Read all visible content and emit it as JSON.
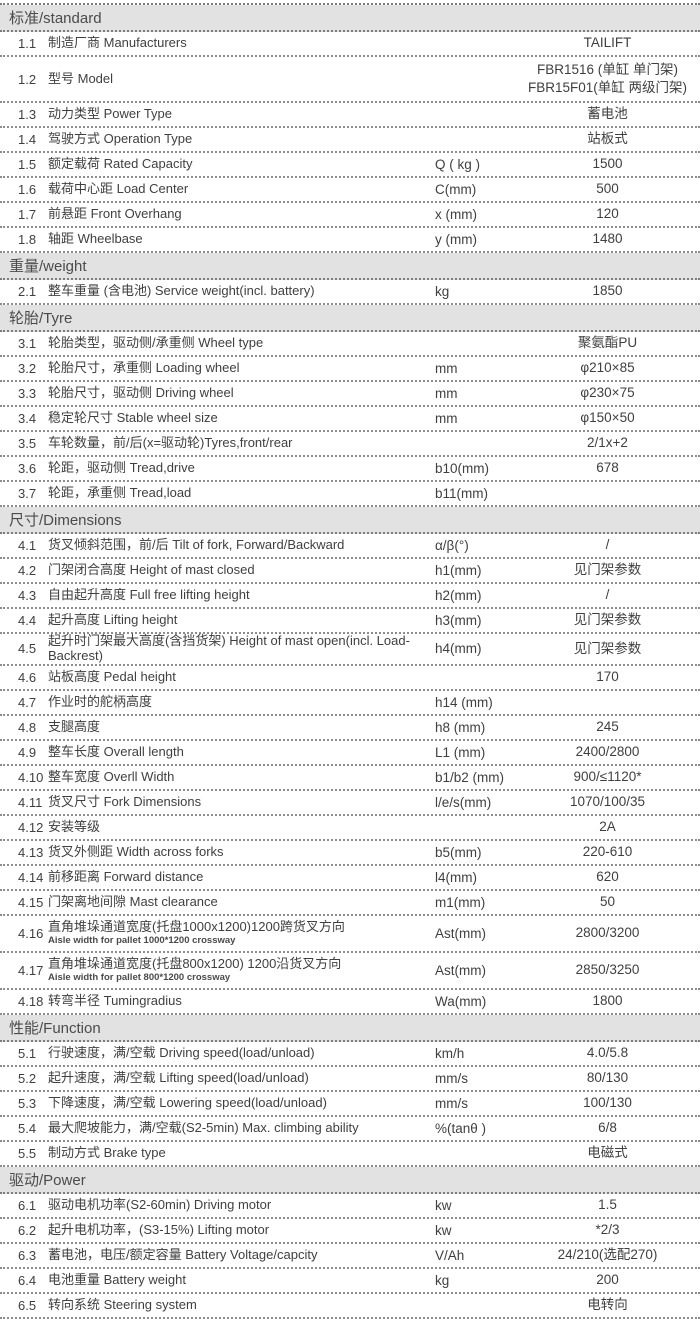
{
  "document": {
    "type": "forklift-specification-sheet",
    "brand": "TAILIFT",
    "colors": {
      "section_bar_bg": "#e2e2e2",
      "text": "#3f3f3f",
      "dotted_line": "#7d7d7d"
    }
  },
  "table": {
    "sections": [
      {
        "title": "标准/standard",
        "rows": [
          {
            "num": "1.1",
            "label": "制造厂商 Manufacturers",
            "unit": "",
            "value": "TAILIFT"
          },
          {
            "num": "1.2",
            "label": "型号 Model",
            "unit": "",
            "value_lines": [
              "FBR1516 (单缸 单门架)",
              "FBR15F01(单缸 两级门架)"
            ]
          },
          {
            "num": "1.3",
            "label": "动力类型 Power Type",
            "unit": "",
            "value": "蓄电池"
          },
          {
            "num": "1.4",
            "label": "驾驶方式 Operation Type",
            "unit": "",
            "value": "站板式"
          },
          {
            "num": "1.5",
            "label": "额定载荷 Rated Capacity",
            "unit": "Q ( kg )",
            "value": "1500"
          },
          {
            "num": "1.6",
            "label": "载荷中心距 Load Center",
            "unit": "C(mm)",
            "value": "500"
          },
          {
            "num": "1.7",
            "label": "前悬距 Front Overhang",
            "unit": "x (mm)",
            "value": "120"
          },
          {
            "num": "1.8",
            "label": "轴距 Wheelbase",
            "unit": "y (mm)",
            "value": "1480"
          }
        ]
      },
      {
        "title": "重量/weight",
        "rows": [
          {
            "num": "2.1",
            "label": "整车重量 (含电池) Service weight(incl. battery)",
            "unit": "kg",
            "value": "1850"
          }
        ]
      },
      {
        "title": "轮胎/Tyre",
        "rows": [
          {
            "num": "3.1",
            "label": "轮胎类型，驱动侧/承重侧  Wheel type",
            "unit": "",
            "value": "聚氨酯PU"
          },
          {
            "num": "3.2",
            "label": "轮胎尺寸，承重侧 Loading wheel",
            "unit": "mm",
            "value": "φ210×85"
          },
          {
            "num": "3.3",
            "label": "轮胎尺寸，驱动侧 Driving wheel",
            "unit": "mm",
            "value": "φ230×75"
          },
          {
            "num": "3.4",
            "label": "稳定轮尺寸 Stable wheel size",
            "unit": "mm",
            "value": "φ150×50"
          },
          {
            "num": "3.5",
            "label": "车轮数量，前/后(x=驱动轮)Tyres,front/rear",
            "unit": "",
            "value": "2/1x+2"
          },
          {
            "num": "3.6",
            "label": "轮距，驱动侧 Tread,drive",
            "unit": "b10(mm)",
            "value": "678"
          },
          {
            "num": "3.7",
            "label": "轮距，承重侧 Tread,load",
            "unit": "b11(mm)",
            "value": ""
          }
        ]
      },
      {
        "title": "尺寸/Dimensions",
        "rows": [
          {
            "num": "4.1",
            "label": "货叉倾斜范围，前/后  Tilt of fork, Forward/Backward",
            "unit": "α/β(°)",
            "value": "/"
          },
          {
            "num": "4.2",
            "label": "门架闭合高度 Height of mast closed",
            "unit": "h1(mm)",
            "value": "见门架参数"
          },
          {
            "num": "4.3",
            "label": "自由起升高度 Full free lifting height",
            "unit": "h2(mm)",
            "value": "/"
          },
          {
            "num": "4.4",
            "label": "起升高度 Lifting height",
            "unit": "h3(mm)",
            "value": "见门架参数"
          },
          {
            "num": "4.5",
            "label": "起升时门架最大高度(含挡货架) Height of mast open(incl. Load-Backrest)",
            "unit": "h4(mm)",
            "value": "见门架参数"
          },
          {
            "num": "4.6",
            "label": "站板高度  Pedal height",
            "unit": "",
            "value": "170"
          },
          {
            "num": "4.7",
            "label": "作业时的舵柄高度",
            "unit": "h14 (mm)",
            "value": ""
          },
          {
            "num": "4.8",
            "label": "支腿高度",
            "unit": "h8 (mm)",
            "value": "245"
          },
          {
            "num": "4.9",
            "label": "整车长度  Overall length",
            "unit": "L1 (mm)",
            "value": "2400/2800"
          },
          {
            "num": "4.10",
            "label": "整车宽度  Overll Width",
            "unit": "b1/b2 (mm)",
            "value": "900/≤1120*"
          },
          {
            "num": "4.11",
            "label": "货叉尺寸  Fork Dimensions",
            "unit": "l/e/s(mm)",
            "value": "1070/100/35"
          },
          {
            "num": "4.12",
            "label": "安装等级",
            "unit": "",
            "value": "2A"
          },
          {
            "num": "4.13",
            "label": "货叉外侧距 Width across forks",
            "unit": "b5(mm)",
            "value": "220-610"
          },
          {
            "num": "4.14",
            "label": "前移距离 Forward distance",
            "unit": "l4(mm)",
            "value": "620"
          },
          {
            "num": "4.15",
            "label": "门架离地间隙  Mast clearance",
            "unit": "m1(mm)",
            "value": "50"
          },
          {
            "num": "4.16",
            "label": "直角堆垛通道宽度(托盘1000x1200)1200跨货叉方向",
            "sublabel": "Aisle width for pallet 1000*1200 crossway",
            "unit": "Ast(mm)",
            "value": "2800/3200"
          },
          {
            "num": "4.17",
            "label": "直角堆垛通道宽度(托盘800x1200) 1200沿货叉方向",
            "sublabel": "Aisle width for pallet 800*1200 crossway",
            "unit": "Ast(mm)",
            "value": "2850/3250"
          },
          {
            "num": "4.18",
            "label": "转弯半径 Tumingradius",
            "unit": "Wa(mm)",
            "value": "1800"
          }
        ]
      },
      {
        "title": "性能/Function",
        "rows": [
          {
            "num": "5.1",
            "label": "行驶速度，满/空载 Driving speed(load/unload)",
            "unit": "km/h",
            "value": "4.0/5.8"
          },
          {
            "num": "5.2",
            "label": "起升速度，满/空载 Lifting speed(load/unload)",
            "unit": "mm/s",
            "value": "80/130"
          },
          {
            "num": "5.3",
            "label": "下降速度，满/空载 Lowering speed(load/unload)",
            "unit": "mm/s",
            "value": "100/130"
          },
          {
            "num": "5.4",
            "label": "最大爬坡能力，满/空载(S2-5min) Max. climbing ability",
            "unit": "%(tanθ )",
            "value": "6/8"
          },
          {
            "num": "5.5",
            "label": "制动方式 Brake type",
            "unit": "",
            "value": "电磁式"
          }
        ]
      },
      {
        "title": "驱动/Power",
        "rows": [
          {
            "num": "6.1",
            "label": "驱动电机功率(S2-60min) Driving motor",
            "unit": "kw",
            "value": "1.5"
          },
          {
            "num": "6.2",
            "label": "起升电机功率，(S3-15%) Lifting motor",
            "unit": "kw",
            "value": "*2/3"
          },
          {
            "num": "6.3",
            "label": "蓄电池，电压/额定容量 Battery Voltage/capcity",
            "unit": "V/Ah",
            "value": "24/210(选配270)"
          },
          {
            "num": "6.4",
            "label": "电池重量 Battery weight",
            "unit": "kg",
            "value": "200"
          },
          {
            "num": "6.5",
            "label": "转向系统 Steering system",
            "unit": "",
            "value": "电转向"
          }
        ]
      }
    ]
  }
}
